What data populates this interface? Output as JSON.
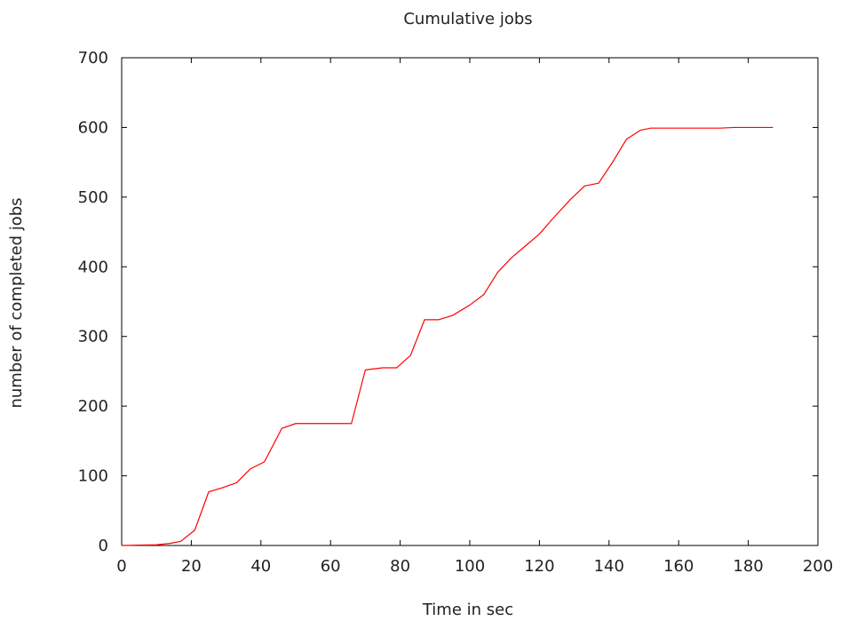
{
  "chart_data": {
    "type": "line",
    "title": "Cumulative jobs",
    "xlabel": "Time in sec",
    "ylabel": "number of completed jobs",
    "xlim": [
      0,
      200
    ],
    "ylim": [
      0,
      700
    ],
    "x_ticks": [
      0,
      20,
      40,
      60,
      80,
      100,
      120,
      140,
      160,
      180,
      200
    ],
    "y_ticks": [
      0,
      100,
      200,
      300,
      400,
      500,
      600,
      700
    ],
    "grid": false,
    "colors": {
      "line": "#ff0000",
      "axes": "#000000",
      "text": "#222222",
      "background": "#ffffff"
    },
    "series": [
      {
        "x": [
          0,
          10,
          14,
          17,
          21,
          25,
          29,
          33,
          37,
          41,
          46,
          50,
          54,
          58,
          62,
          66,
          70,
          75,
          79,
          83,
          87,
          91,
          95,
          100,
          104,
          108,
          112,
          116,
          120,
          124,
          129,
          133,
          137,
          141,
          145,
          149,
          152,
          156,
          160,
          164,
          168,
          172,
          176,
          180,
          184,
          187
        ],
        "y": [
          0,
          1,
          3,
          6,
          22,
          77,
          83,
          90,
          110,
          120,
          168,
          175,
          175,
          175,
          175,
          175,
          252,
          255,
          255,
          273,
          324,
          324,
          330,
          345,
          360,
          392,
          413,
          430,
          447,
          470,
          497,
          516,
          520,
          550,
          583,
          596,
          599,
          599,
          599,
          599,
          599,
          599,
          600,
          600,
          600,
          600
        ]
      }
    ]
  }
}
